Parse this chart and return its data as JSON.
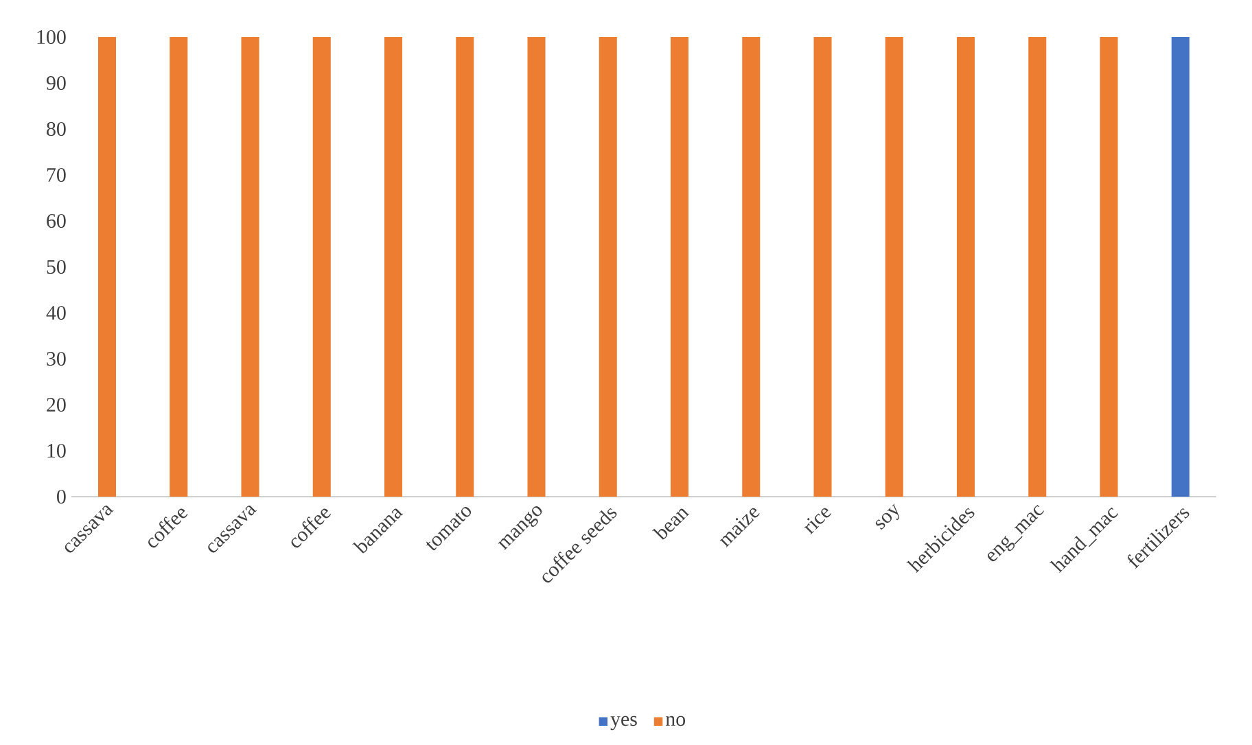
{
  "chart_data": {
    "type": "bar",
    "stacked": true,
    "categories": [
      "cassava",
      "coffee",
      "cassava",
      "coffee",
      "banana",
      "tomato",
      "mango",
      "coffee seeds",
      "bean",
      "maize",
      "rice",
      "soy",
      "herbicides",
      "eng_mac",
      "hand_mac",
      "fertilizers"
    ],
    "series": [
      {
        "name": "yes",
        "color": "#4472c4",
        "values": [
          null,
          null,
          null,
          null,
          null,
          null,
          null,
          null,
          null,
          null,
          null,
          null,
          null,
          null,
          null,
          100
        ]
      },
      {
        "name": "no",
        "color": "#ed7d31",
        "values": [
          100,
          100,
          100,
          100,
          100,
          100,
          100,
          100,
          100,
          100,
          100,
          100,
          100,
          100,
          100,
          null
        ]
      }
    ],
    "ylim": [
      0,
      100
    ],
    "yticks": [
      0,
      10,
      20,
      30,
      40,
      50,
      60,
      70,
      80,
      90,
      100
    ],
    "grid": false,
    "legend": "bottom"
  }
}
